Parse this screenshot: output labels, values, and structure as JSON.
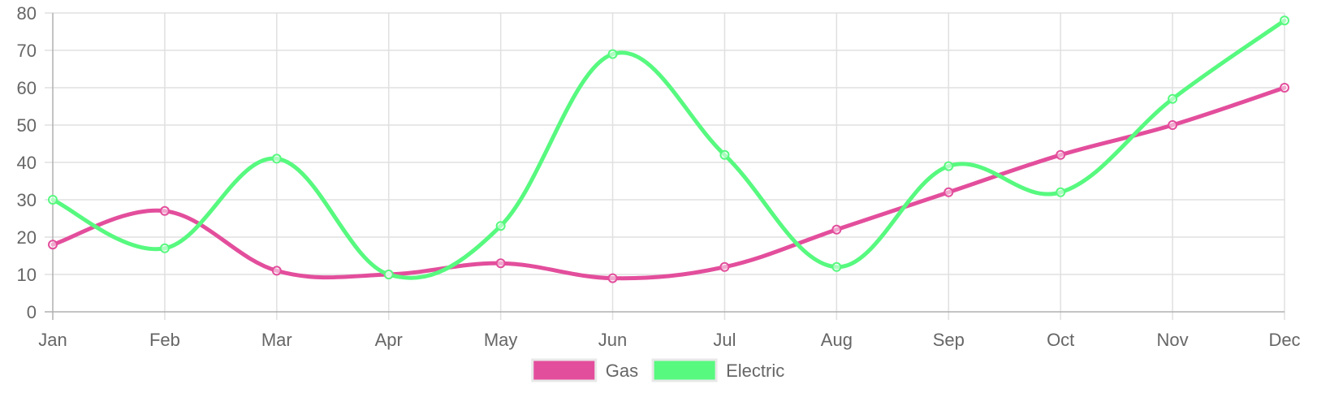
{
  "chart_data": {
    "type": "line",
    "title": "",
    "xlabel": "",
    "ylabel": "",
    "categories": [
      "Jan",
      "Feb",
      "Mar",
      "Apr",
      "May",
      "Jun",
      "Jul",
      "Aug",
      "Sep",
      "Oct",
      "Nov",
      "Dec"
    ],
    "ylim": [
      0,
      80
    ],
    "yticks": [
      0,
      10,
      20,
      30,
      40,
      50,
      60,
      70,
      80
    ],
    "grid": true,
    "smooth": true,
    "legend_position": "bottom",
    "series": [
      {
        "name": "Gas",
        "color": "#e34e9c",
        "values": [
          18,
          27,
          11,
          10,
          13,
          9,
          12,
          22,
          32,
          42,
          50,
          60
        ]
      },
      {
        "name": "Electric",
        "color": "#57f97f",
        "values": [
          30,
          17,
          41,
          10,
          23,
          69,
          42,
          12,
          39,
          32,
          57,
          78
        ]
      }
    ]
  }
}
